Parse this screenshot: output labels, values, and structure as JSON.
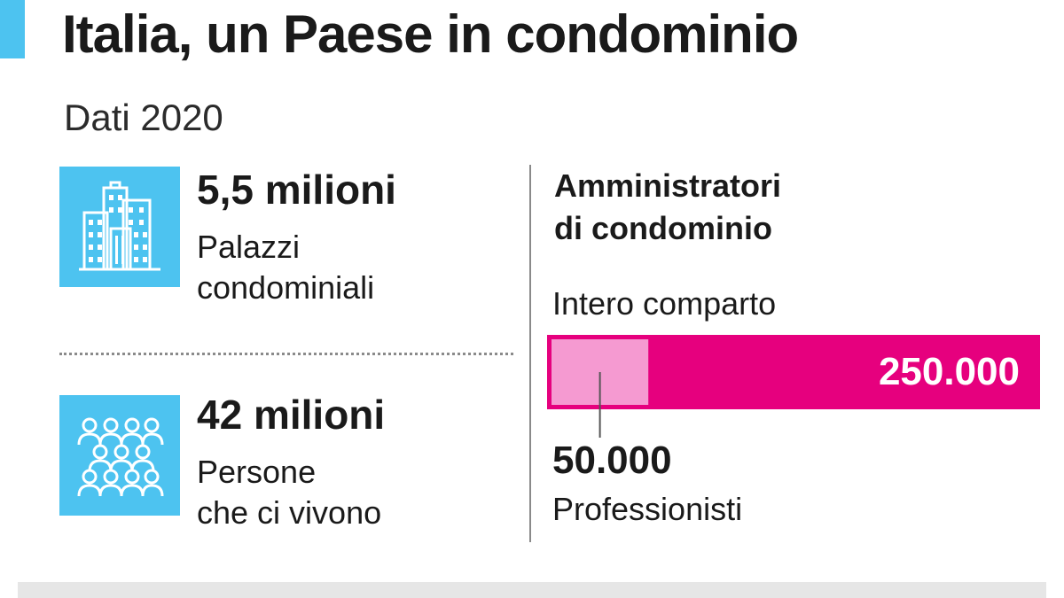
{
  "header": {
    "title": "Italia, un Paese in condominio",
    "subtitle": "Dati 2020"
  },
  "stats": [
    {
      "icon": "buildings-icon",
      "value": "5,5 milioni",
      "label_lines": [
        "Palazzi",
        "condominiali"
      ]
    },
    {
      "icon": "people-group-icon",
      "value": "42 milioni",
      "label_lines": [
        "Persone",
        "che ci vivono"
      ]
    }
  ],
  "panel": {
    "heading_lines": [
      "Amministratori",
      "di condominio"
    ],
    "bar_caption": "Intero comparto",
    "total_label": "250.000",
    "sub_label_value": "50.000",
    "sub_label_text": "Professionisti"
  },
  "colors": {
    "accent": "#4dc3f0",
    "total_bar": "#e6007e",
    "sub_bar": "#f59ad1"
  },
  "chart_data": {
    "type": "bar",
    "title": "Amministratori di condominio",
    "categories": [
      "Intero comparto",
      "Professionisti"
    ],
    "values": [
      250000,
      50000
    ],
    "orientation": "horizontal",
    "stacked_overlay": true,
    "xlim": [
      0,
      250000
    ],
    "grid": false
  }
}
